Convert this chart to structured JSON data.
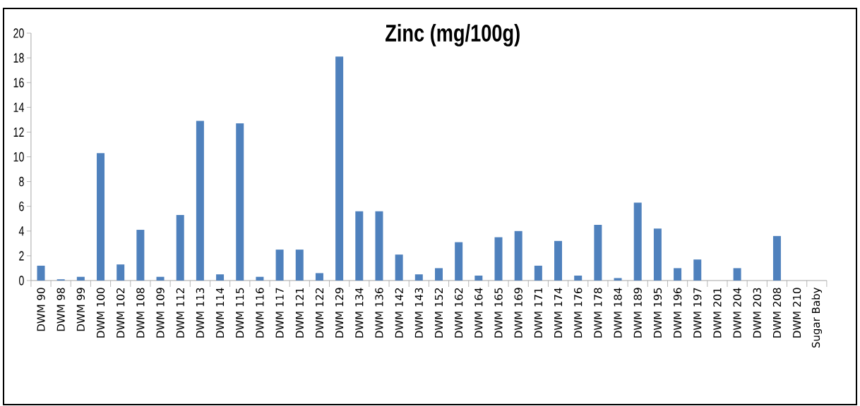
{
  "chart_data": {
    "type": "bar",
    "title": "Zinc (mg/100g)",
    "categories": [
      "DWM 90",
      "DWM 98",
      "DWM 99",
      "DWM 100",
      "DWM 102",
      "DWM 108",
      "DWM 109",
      "DWM 112",
      "DWM 113",
      "DWM 114",
      "DWM 115",
      "DWM 116",
      "DWM 117",
      "DWM 121",
      "DWM 122",
      "DWM 129",
      "DWM 134",
      "DWM 136",
      "DWM 142",
      "DWM 143",
      "DWM 152",
      "DWM 162",
      "DWM 164",
      "DWM 165",
      "DWM 169",
      "DWM 171",
      "DWM 174",
      "DWM 176",
      "DWM 178",
      "DWM 184",
      "DWM 189",
      "DWM 195",
      "DWM 196",
      "DWM 197",
      "DWM 201",
      "DWM 204",
      "DWM 203",
      "DWM 208",
      "DWM 210",
      "Sugar Baby"
    ],
    "values": [
      1.2,
      0.1,
      0.3,
      10.3,
      1.3,
      4.1,
      0.3,
      5.3,
      12.9,
      0.5,
      12.7,
      0.3,
      2.5,
      2.5,
      0.6,
      18.1,
      5.6,
      5.6,
      2.1,
      0.5,
      1.0,
      3.1,
      0.4,
      3.5,
      4.0,
      1.2,
      3.2,
      0.4,
      4.5,
      0.2,
      6.3,
      4.2,
      1.0,
      1.7,
      0,
      1.0,
      0,
      3.6,
      0,
      0
    ],
    "color": "#4f81bd",
    "ylim": [
      0,
      20
    ],
    "yticks": [
      0,
      2,
      4,
      6,
      8,
      10,
      12,
      14,
      16,
      18,
      20
    ],
    "grid": false
  }
}
